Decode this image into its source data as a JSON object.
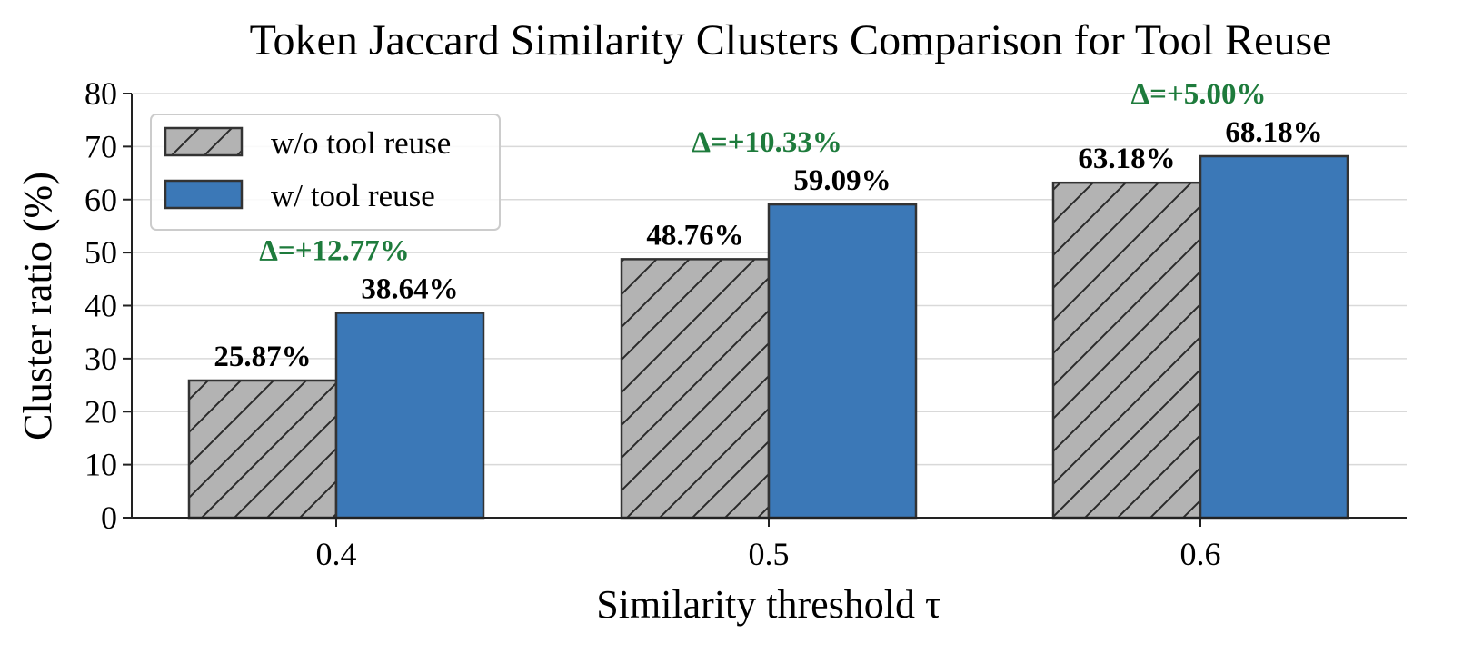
{
  "chart_data": {
    "type": "bar",
    "title": "Token Jaccard Similarity Clusters Comparison for Tool Reuse",
    "xlabel": "Similarity threshold τ",
    "ylabel": "Cluster ratio (%)",
    "categories": [
      "0.4",
      "0.5",
      "0.6"
    ],
    "ylim": [
      0,
      80
    ],
    "yticks": [
      0,
      10,
      20,
      30,
      40,
      50,
      60,
      70,
      80
    ],
    "grid": "horizontal",
    "legend_position": "top-left",
    "series": [
      {
        "name": "w/o tool reuse",
        "values": [
          25.87,
          48.76,
          63.18
        ],
        "labels": [
          "25.87%",
          "48.76%",
          "63.18%"
        ],
        "color": "#b3b3b3",
        "pattern": "hatch"
      },
      {
        "name": "w/ tool reuse",
        "values": [
          38.64,
          59.09,
          68.18
        ],
        "labels": [
          "38.64%",
          "59.09%",
          "68.18%"
        ],
        "color": "#3b78b7",
        "pattern": "solid"
      }
    ],
    "deltas": [
      "Δ=+12.77%",
      "Δ=+10.33%",
      "Δ=+5.00%"
    ],
    "delta_color": "#1e7b3c"
  }
}
